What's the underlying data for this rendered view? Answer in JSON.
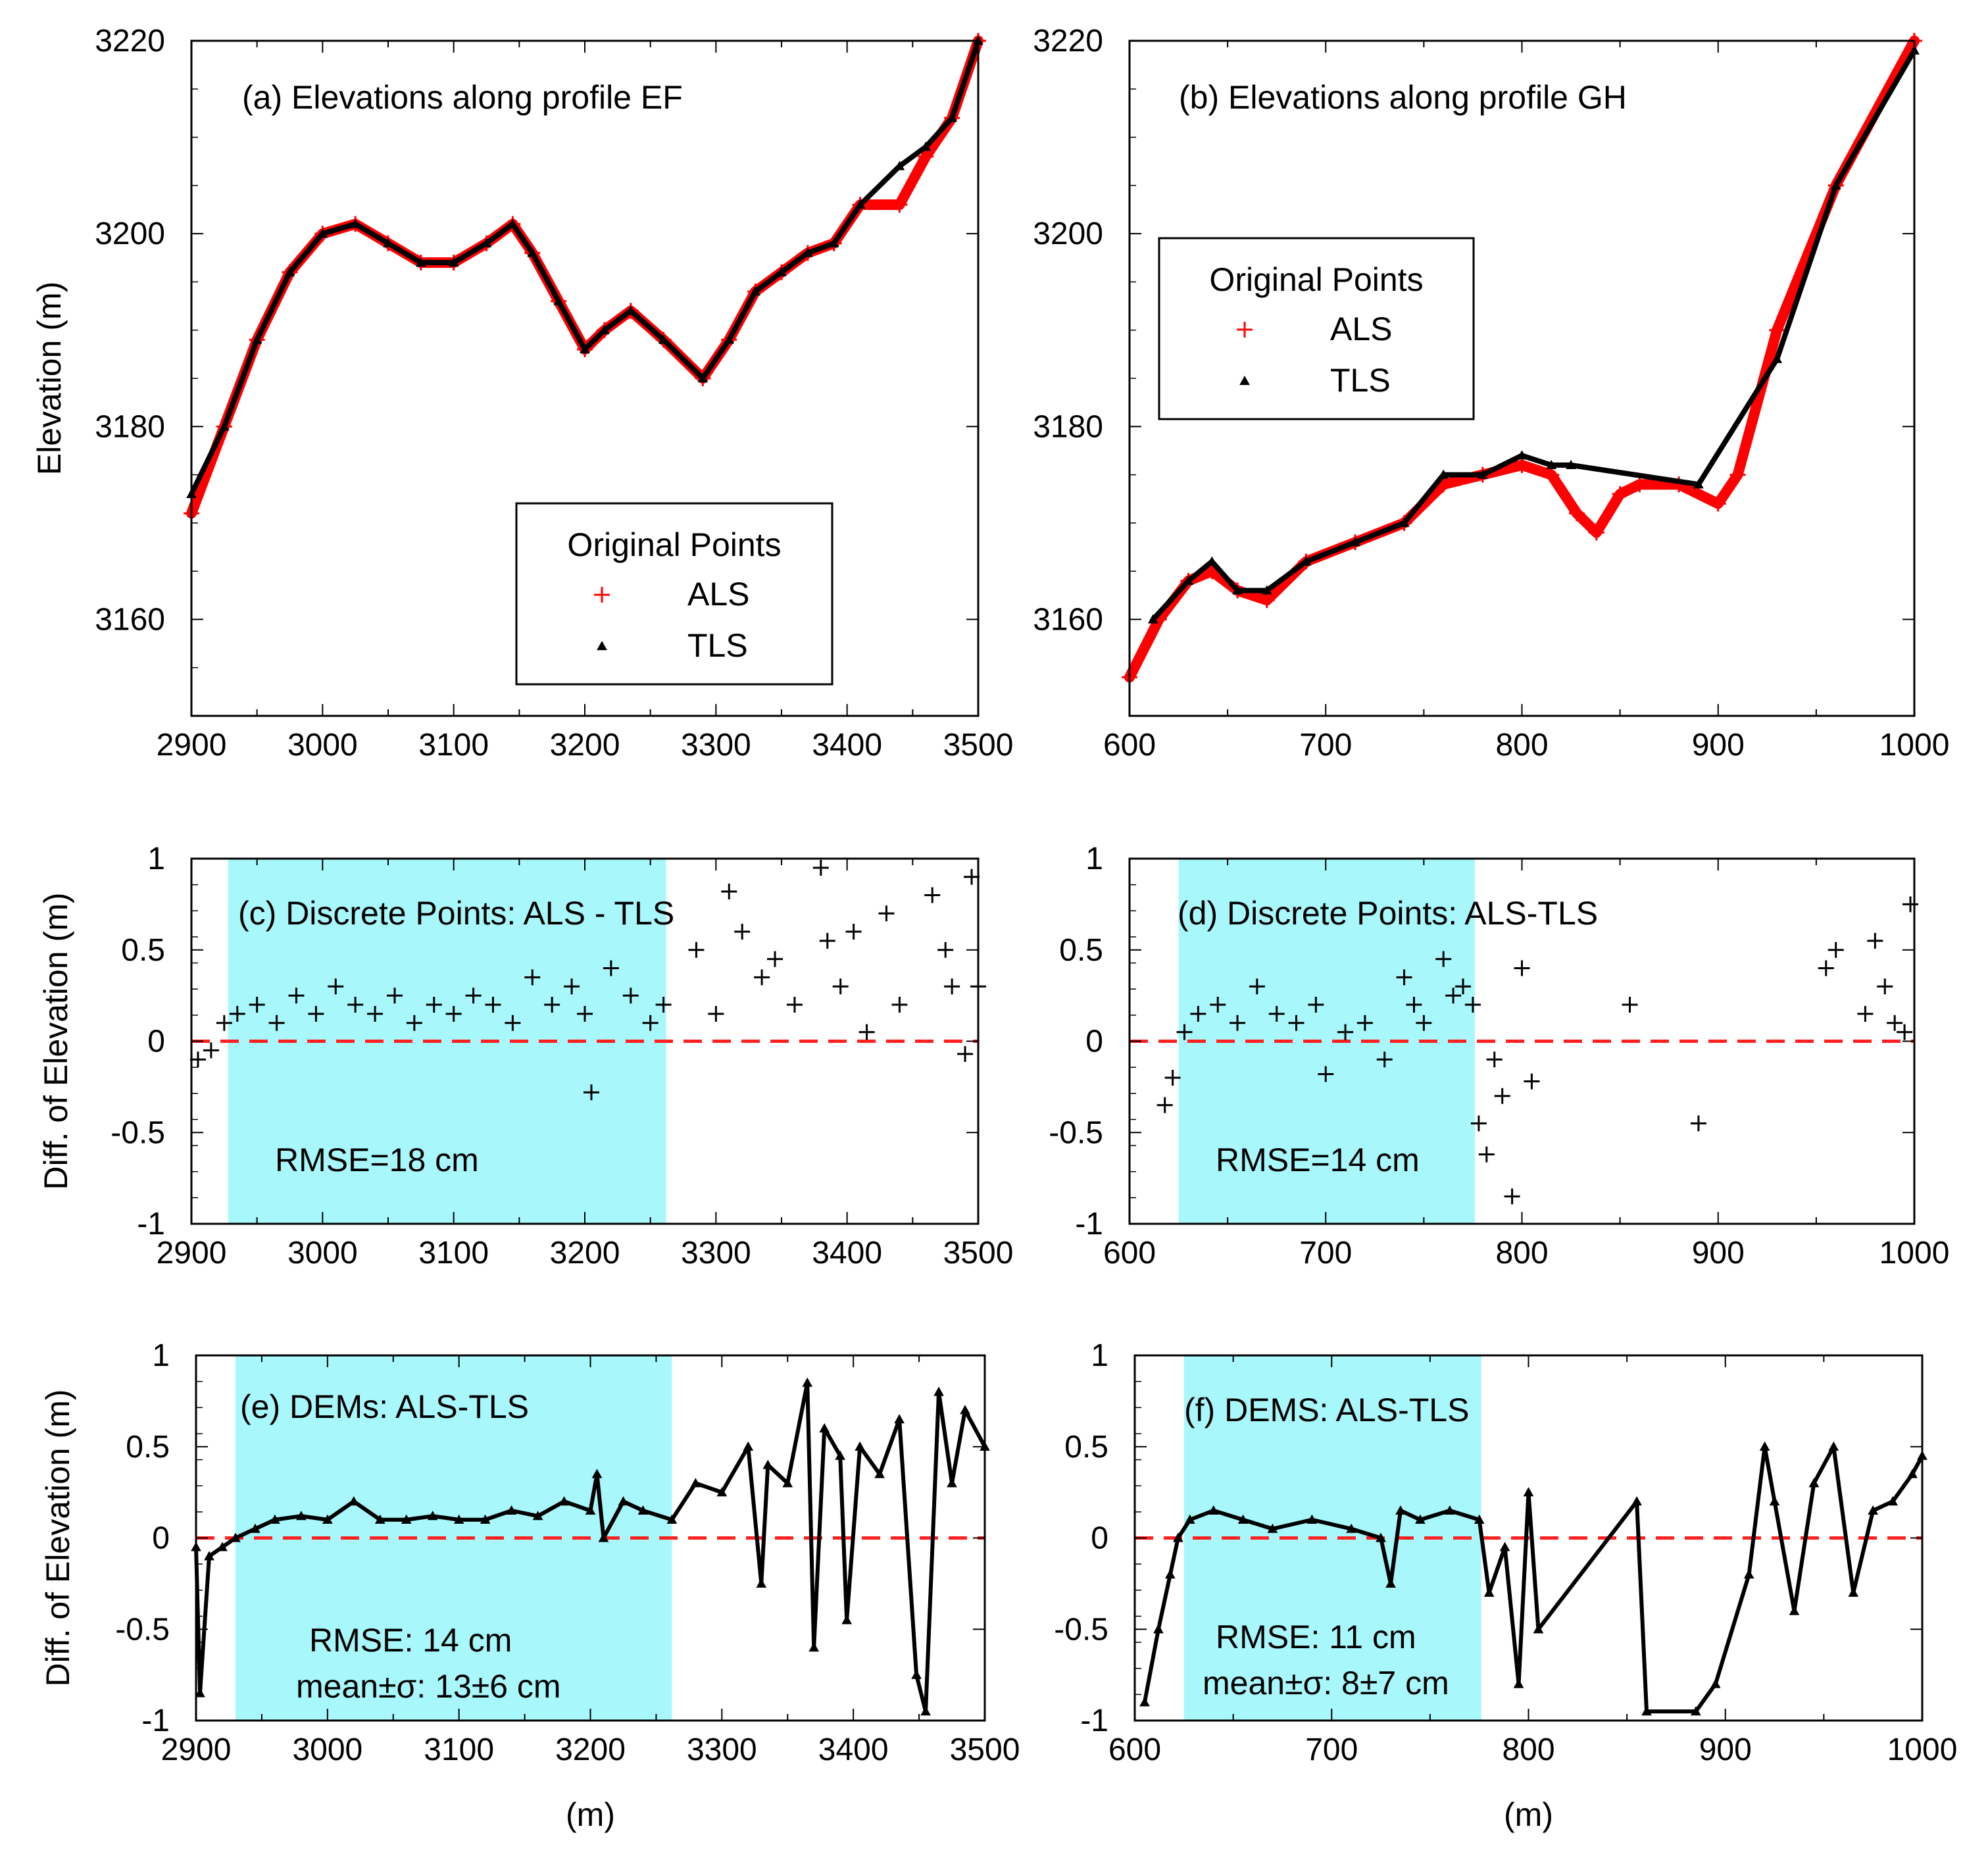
{
  "chart_data": [
    {
      "id": "a",
      "type": "scatter",
      "title": "(a) Elevations along profile EF",
      "xlabel": "",
      "ylabel": "Elevation (m)",
      "xlim": [
        2900,
        3500
      ],
      "ylim": [
        3150,
        3220
      ],
      "xticks": [
        2900,
        3000,
        3100,
        3200,
        3300,
        3400,
        3500
      ],
      "yticks": [
        3160,
        3180,
        3200,
        3220
      ],
      "legend": {
        "title": "Original Points",
        "position": "bottom-right",
        "entries": [
          {
            "label": "ALS",
            "marker": "+",
            "color": "#ff0000"
          },
          {
            "label": "TLS",
            "marker": "triangle",
            "color": "#000000"
          }
        ]
      },
      "series": [
        {
          "name": "ALS",
          "color": "#ff0000",
          "marker": "+",
          "x": [
            2900,
            2925,
            2950,
            2975,
            3000,
            3025,
            3050,
            3075,
            3100,
            3125,
            3145,
            3160,
            3180,
            3200,
            3215,
            3235,
            3260,
            3290,
            3310,
            3330,
            3350,
            3370,
            3390,
            3410,
            3440,
            3460,
            3480,
            3500
          ],
          "y": [
            3171,
            3180,
            3189,
            3196,
            3200,
            3201,
            3199,
            3197,
            3197,
            3199,
            3201,
            3198,
            3193,
            3188,
            3190,
            3192,
            3189,
            3185,
            3189,
            3194,
            3196,
            3198,
            3199,
            3203,
            3203,
            3208,
            3212,
            3220
          ]
        },
        {
          "name": "TLS",
          "color": "#000000",
          "marker": "triangle",
          "x": [
            2900,
            2925,
            2950,
            2975,
            3000,
            3025,
            3050,
            3075,
            3100,
            3125,
            3145,
            3160,
            3180,
            3200,
            3215,
            3235,
            3260,
            3290,
            3310,
            3330,
            3350,
            3370,
            3390,
            3410,
            3440,
            3460,
            3480,
            3500
          ],
          "y": [
            3173,
            3180,
            3189,
            3196,
            3200,
            3201,
            3199,
            3197,
            3197,
            3199,
            3201,
            3198,
            3193,
            3188,
            3190,
            3192,
            3189,
            3185,
            3189,
            3194,
            3196,
            3198,
            3199,
            3203,
            3207,
            3209,
            3212,
            3220
          ]
        }
      ]
    },
    {
      "id": "b",
      "type": "scatter",
      "title": "(b) Elevations along profile GH",
      "xlabel": "",
      "ylabel": "",
      "xlim": [
        600,
        1000
      ],
      "ylim": [
        3150,
        3220
      ],
      "xticks": [
        600,
        700,
        800,
        900,
        1000
      ],
      "yticks": [
        3160,
        3180,
        3200,
        3220
      ],
      "legend": {
        "title": "Original Points",
        "position": "top-left",
        "entries": [
          {
            "label": "ALS",
            "marker": "+",
            "color": "#ff0000"
          },
          {
            "label": "TLS",
            "marker": "triangle",
            "color": "#000000"
          }
        ]
      },
      "series": [
        {
          "name": "ALS",
          "color": "#ff0000",
          "marker": "+",
          "x": [
            600,
            615,
            630,
            642,
            655,
            670,
            690,
            715,
            740,
            760,
            780,
            800,
            815,
            828,
            838,
            850,
            860,
            880,
            900,
            910,
            930,
            960,
            1000
          ],
          "y": [
            3154,
            3160,
            3164,
            3165,
            3163,
            3162,
            3166,
            3168,
            3170,
            3174,
            3175,
            3176,
            3175,
            3171,
            3169,
            3173,
            3174,
            3174,
            3172,
            3175,
            3190,
            3205,
            3220
          ]
        },
        {
          "name": "TLS",
          "color": "#000000",
          "marker": "triangle",
          "x": [
            612,
            630,
            642,
            655,
            670,
            690,
            715,
            740,
            760,
            780,
            800,
            815,
            825,
            890,
            930,
            960,
            1000
          ],
          "y": [
            3160,
            3164,
            3166,
            3163,
            3163,
            3166,
            3168,
            3170,
            3175,
            3175,
            3177,
            3176,
            3176,
            3174,
            3187,
            3205,
            3219
          ]
        }
      ]
    },
    {
      "id": "c",
      "type": "scatter",
      "title": "(c) Discrete Points: ALS - TLS",
      "annotation": "RMSE=18 cm",
      "xlabel": "",
      "ylabel": "Diff. of Elevation (m)",
      "xlim": [
        2900,
        3500
      ],
      "ylim": [
        -1,
        1
      ],
      "xticks": [
        2900,
        3000,
        3100,
        3200,
        3300,
        3400,
        3500
      ],
      "yticks": [
        -1,
        -0.5,
        0,
        0.5,
        1
      ],
      "highlight_x": [
        2928,
        3262
      ],
      "zero_line": true,
      "series": [
        {
          "name": "ALS-TLS",
          "color": "#000000",
          "marker": "+",
          "x": [
            2905,
            2915,
            2925,
            2935,
            2950,
            2965,
            2980,
            2995,
            3010,
            3025,
            3040,
            3055,
            3070,
            3085,
            3100,
            3115,
            3130,
            3145,
            3160,
            3175,
            3190,
            3200,
            3205,
            3220,
            3235,
            3250,
            3260,
            3285,
            3300,
            3310,
            3320,
            3335,
            3345,
            3360,
            3380,
            3385,
            3395,
            3405,
            3415,
            3430,
            3440,
            3465,
            3475,
            3480,
            3490,
            3495,
            3500
          ],
          "y": [
            -0.1,
            -0.05,
            0.1,
            0.15,
            0.2,
            0.1,
            0.25,
            0.15,
            0.3,
            0.2,
            0.15,
            0.25,
            0.1,
            0.2,
            0.15,
            0.25,
            0.2,
            0.1,
            0.35,
            0.2,
            0.3,
            0.15,
            -0.28,
            0.4,
            0.25,
            0.1,
            0.2,
            0.5,
            0.15,
            0.82,
            0.6,
            0.35,
            0.45,
            0.2,
            0.95,
            0.55,
            0.3,
            0.6,
            0.05,
            0.7,
            0.2,
            0.8,
            0.5,
            0.3,
            -0.07,
            0.9,
            0.3
          ]
        }
      ]
    },
    {
      "id": "d",
      "type": "scatter",
      "title": "(d) Discrete Points: ALS-TLS",
      "annotation": "RMSE=14 cm",
      "xlabel": "",
      "ylabel": "",
      "xlim": [
        600,
        1000
      ],
      "ylim": [
        -1,
        1
      ],
      "xticks": [
        600,
        700,
        800,
        900,
        1000
      ],
      "yticks": [
        -1,
        -0.5,
        0,
        0.5,
        1
      ],
      "highlight_x": [
        625,
        776
      ],
      "zero_line": true,
      "series": [
        {
          "name": "ALS-TLS",
          "color": "#000000",
          "marker": "+",
          "x": [
            618,
            622,
            628,
            635,
            645,
            655,
            665,
            675,
            685,
            695,
            700,
            710,
            720,
            730,
            740,
            745,
            750,
            760,
            765,
            770,
            775,
            778,
            782,
            786,
            790,
            795,
            800,
            805,
            855,
            890,
            955,
            960,
            975,
            980,
            985,
            990,
            995,
            998
          ],
          "y": [
            -0.35,
            -0.2,
            0.05,
            0.15,
            0.2,
            0.1,
            0.3,
            0.15,
            0.1,
            0.2,
            -0.18,
            0.05,
            0.1,
            -0.1,
            0.35,
            0.2,
            0.1,
            0.45,
            0.25,
            0.3,
            0.2,
            -0.45,
            -0.62,
            -0.1,
            -0.3,
            -0.85,
            0.4,
            -0.22,
            0.2,
            -0.45,
            0.4,
            0.5,
            0.15,
            0.55,
            0.3,
            0.1,
            0.05,
            0.75
          ]
        }
      ]
    },
    {
      "id": "e",
      "type": "scatter",
      "title": "(e) DEMs: ALS-TLS",
      "annotation": [
        "RMSE: 14 cm",
        "mean±σ: 13±6 cm"
      ],
      "xlabel": "(m)",
      "ylabel": "Diff. of Elevation (m)",
      "xlim": [
        2900,
        3500
      ],
      "ylim": [
        -1,
        1
      ],
      "xticks": [
        2900,
        3000,
        3100,
        3200,
        3300,
        3400,
        3500
      ],
      "yticks": [
        -1,
        -0.5,
        0,
        0.5,
        1
      ],
      "highlight_x": [
        2930,
        3262
      ],
      "zero_line": true,
      "series": [
        {
          "name": "ALS-TLS",
          "color": "#000000",
          "marker": "triangle",
          "x": [
            2900,
            2903,
            2910,
            2920,
            2930,
            2945,
            2960,
            2980,
            3000,
            3020,
            3040,
            3060,
            3080,
            3100,
            3120,
            3140,
            3160,
            3180,
            3200,
            3205,
            3210,
            3225,
            3240,
            3262,
            3280,
            3300,
            3320,
            3330,
            3335,
            3350,
            3365,
            3370,
            3378,
            3390,
            3395,
            3405,
            3420,
            3435,
            3448,
            3455,
            3465,
            3475,
            3485,
            3500
          ],
          "y": [
            -0.05,
            -0.85,
            -0.1,
            -0.05,
            0.0,
            0.05,
            0.1,
            0.12,
            0.1,
            0.2,
            0.1,
            0.1,
            0.12,
            0.1,
            0.1,
            0.15,
            0.12,
            0.2,
            0.15,
            0.35,
            0.0,
            0.2,
            0.15,
            0.1,
            0.3,
            0.25,
            0.5,
            -0.25,
            0.4,
            0.3,
            0.85,
            -0.6,
            0.6,
            0.45,
            -0.45,
            0.5,
            0.35,
            0.65,
            -0.75,
            -0.95,
            0.8,
            0.3,
            0.7,
            0.5
          ]
        }
      ]
    },
    {
      "id": "f",
      "type": "scatter",
      "title": "(f) DEMS: ALS-TLS",
      "annotation": [
        "RMSE: 11 cm",
        "mean±σ: 8±7 cm"
      ],
      "xlabel": "(m)",
      "ylabel": "",
      "xlim": [
        600,
        1000
      ],
      "ylim": [
        -1,
        1
      ],
      "xticks": [
        600,
        700,
        800,
        900,
        1000
      ],
      "yticks": [
        -1,
        -0.5,
        0,
        0.5,
        1
      ],
      "highlight_x": [
        625,
        776
      ],
      "zero_line": true,
      "series": [
        {
          "name": "ALS-TLS",
          "color": "#000000",
          "marker": "triangle",
          "x": [
            605,
            612,
            618,
            622,
            628,
            640,
            655,
            670,
            690,
            710,
            725,
            730,
            735,
            745,
            760,
            775,
            780,
            788,
            795,
            800,
            805,
            855,
            860,
            885,
            895,
            912,
            920,
            925,
            935,
            945,
            955,
            965,
            975,
            985,
            995,
            1000
          ],
          "y": [
            -0.9,
            -0.5,
            -0.2,
            0.0,
            0.1,
            0.15,
            0.1,
            0.05,
            0.1,
            0.05,
            0.0,
            -0.25,
            0.15,
            0.1,
            0.15,
            0.1,
            -0.3,
            -0.05,
            -0.8,
            0.25,
            -0.5,
            0.2,
            -0.95,
            -0.95,
            -0.8,
            -0.2,
            0.5,
            0.2,
            -0.4,
            0.3,
            0.5,
            -0.3,
            0.15,
            0.2,
            0.35,
            0.45
          ]
        }
      ]
    }
  ]
}
